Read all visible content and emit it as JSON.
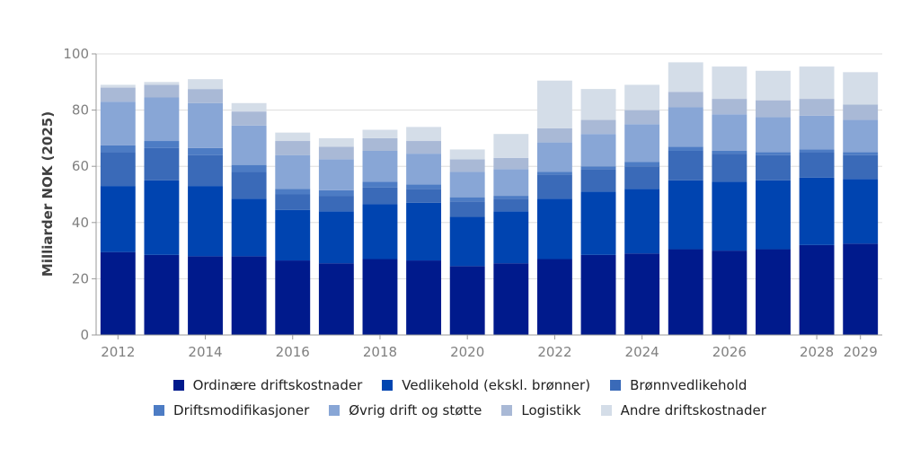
{
  "chart_data": {
    "type": "bar",
    "stacked": true,
    "ylabel": "Milliarder NOK (2025)",
    "ylim": [
      0,
      100
    ],
    "yticks": [
      0,
      20,
      40,
      60,
      80,
      100
    ],
    "x": [
      2012,
      2013,
      2014,
      2015,
      2016,
      2017,
      2018,
      2019,
      2020,
      2021,
      2022,
      2023,
      2024,
      2025,
      2026,
      2027,
      2028,
      2029
    ],
    "xtick_labels": [
      "2012",
      "2014",
      "2016",
      "2018",
      "2020",
      "2022",
      "2024",
      "2026",
      "2028",
      "2029"
    ],
    "grid": true,
    "legend_position": "bottom",
    "series": [
      {
        "name": "Ordinære driftskostnader",
        "color": "#001a8c",
        "values": [
          29.5,
          28.5,
          28,
          28,
          26.5,
          25.5,
          27,
          26.5,
          24.5,
          25.5,
          27,
          28.5,
          29,
          30.5,
          30,
          30.5,
          32,
          32.5
        ]
      },
      {
        "name": "Vedlikehold (ekskl. brønner)",
        "color": "#0044b0",
        "values": [
          23.5,
          26.5,
          25,
          20.5,
          18,
          18.5,
          19.5,
          20.5,
          17.5,
          18.5,
          21.5,
          22.5,
          23,
          24.5,
          24.5,
          24.5,
          24,
          23
        ]
      },
      {
        "name": "Brønnvedlikehold",
        "color": "#3a6ab8",
        "values": [
          12,
          11.5,
          11,
          9.5,
          5.5,
          5.5,
          6,
          5,
          5.5,
          4.5,
          8.5,
          8,
          8,
          10.5,
          10,
          9,
          9,
          8.5
        ]
      },
      {
        "name": "Driftsmodifikasjoner",
        "color": "#4d7cc4",
        "values": [
          2.5,
          2.5,
          2.5,
          2.5,
          2,
          2,
          2,
          1.5,
          1.5,
          1,
          1,
          1,
          1.5,
          1.5,
          1,
          1,
          1,
          1
        ]
      },
      {
        "name": "Øvrig drift og støtte",
        "color": "#88a6d6",
        "values": [
          15.5,
          15.5,
          16,
          14,
          12,
          11,
          11,
          11,
          9,
          9.5,
          10.5,
          11.5,
          13.5,
          14,
          13,
          12.5,
          12,
          11.5
        ]
      },
      {
        "name": "Logistikk",
        "color": "#a9b9d6",
        "values": [
          5,
          4.5,
          5,
          5,
          5,
          4.5,
          4.5,
          4.5,
          4.5,
          4,
          5,
          5,
          5,
          5.5,
          5.5,
          6,
          6,
          5.5
        ]
      },
      {
        "name": "Andre driftskostnader",
        "color": "#d4dde8",
        "values": [
          1,
          1,
          3.5,
          3,
          3,
          3,
          3,
          5,
          3.5,
          8.5,
          17,
          11,
          9,
          10.5,
          11.5,
          10.5,
          11.5,
          11.5
        ]
      }
    ]
  }
}
